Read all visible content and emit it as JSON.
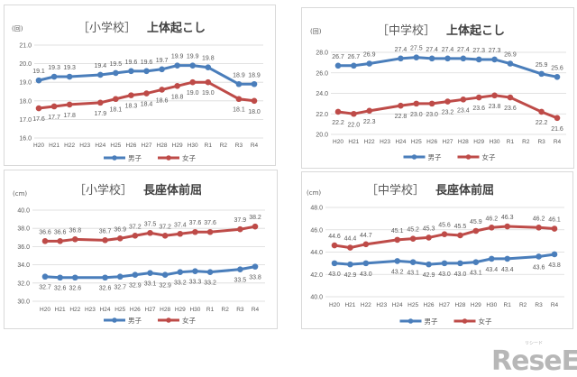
{
  "chart_data": [
    {
      "type": "line",
      "title_school": "［小学校］",
      "title_metric": "上体起こし",
      "unit": "(回)",
      "categories": [
        "H20",
        "H21",
        "H22",
        "H23",
        "H24",
        "H25",
        "H26",
        "H27",
        "H28",
        "H29",
        "H30",
        "R1",
        "R2",
        "R3",
        "R4"
      ],
      "ylim": [
        16.0,
        21.0
      ],
      "yticks": [
        "16.0",
        "17.0",
        "18.0",
        "19.0",
        "20.0",
        "21.0"
      ],
      "grid": true,
      "legend": "bottom",
      "series": [
        {
          "name": "男子",
          "color": "#4a7ebb",
          "values": [
            19.1,
            19.3,
            19.3,
            null,
            19.4,
            19.5,
            19.6,
            19.6,
            19.7,
            19.9,
            19.9,
            19.8,
            null,
            18.9,
            18.9
          ]
        },
        {
          "name": "女子",
          "color": "#be4b48",
          "values": [
            17.6,
            17.7,
            17.8,
            null,
            17.9,
            18.1,
            18.3,
            18.4,
            18.6,
            18.8,
            19.0,
            19.0,
            null,
            18.1,
            18.0
          ]
        }
      ]
    },
    {
      "type": "line",
      "title_school": "［中学校］",
      "title_metric": "上体起こし",
      "unit": "(回)",
      "categories": [
        "H20",
        "H21",
        "H22",
        "H23",
        "H24",
        "H25",
        "H26",
        "H27",
        "H28",
        "H29",
        "H30",
        "R1",
        "R2",
        "R3",
        "R4"
      ],
      "ylim": [
        20.0,
        28.0
      ],
      "yticks": [
        "20.0",
        "22.0",
        "24.0",
        "26.0",
        "28.0"
      ],
      "grid": true,
      "legend": "bottom",
      "series": [
        {
          "name": "男子",
          "color": "#4a7ebb",
          "values": [
            26.7,
            26.7,
            26.9,
            null,
            27.4,
            27.5,
            27.4,
            27.4,
            27.4,
            27.3,
            27.3,
            26.9,
            null,
            25.9,
            25.6
          ]
        },
        {
          "name": "女子",
          "color": "#be4b48",
          "values": [
            22.2,
            22.0,
            22.3,
            null,
            22.8,
            23.0,
            23.0,
            23.2,
            23.4,
            23.6,
            23.8,
            23.6,
            null,
            22.2,
            21.6
          ]
        }
      ]
    },
    {
      "type": "line",
      "title_school": "［小学校］",
      "title_metric": "長座体前屈",
      "unit": "(cm)",
      "categories": [
        "H20",
        "H21",
        "H22",
        "H23",
        "H24",
        "H25",
        "H26",
        "H27",
        "H28",
        "H29",
        "H30",
        "R1",
        "R2",
        "R3",
        "R4"
      ],
      "ylim": [
        30.0,
        40.0
      ],
      "yticks": [
        "30.0",
        "32.0",
        "34.0",
        "36.0",
        "38.0",
        "40.0"
      ],
      "grid": true,
      "legend": "bottom",
      "series": [
        {
          "name": "男子",
          "color": "#4a7ebb",
          "values": [
            32.7,
            32.6,
            32.6,
            null,
            32.6,
            32.7,
            32.9,
            33.1,
            32.9,
            33.2,
            33.3,
            33.2,
            null,
            33.5,
            33.8
          ]
        },
        {
          "name": "女子",
          "color": "#be4b48",
          "values": [
            36.6,
            36.6,
            36.8,
            null,
            36.7,
            36.9,
            37.2,
            37.5,
            37.2,
            37.4,
            37.6,
            37.6,
            null,
            37.9,
            38.2
          ]
        }
      ]
    },
    {
      "type": "line",
      "title_school": "［中学校］",
      "title_metric": "長座体前屈",
      "unit": "(cm)",
      "categories": [
        "H20",
        "H21",
        "H22",
        "H23",
        "H24",
        "H25",
        "H26",
        "H27",
        "H28",
        "H29",
        "H30",
        "R1",
        "R2",
        "R3",
        "R4"
      ],
      "ylim": [
        40.0,
        48.0
      ],
      "yticks": [
        "40.0",
        "42.0",
        "44.0",
        "46.0",
        "48.0"
      ],
      "grid": true,
      "legend": "bottom",
      "series": [
        {
          "name": "男子",
          "color": "#4a7ebb",
          "values": [
            43.0,
            42.9,
            43.0,
            null,
            43.2,
            43.1,
            42.9,
            43.0,
            43.0,
            43.1,
            43.4,
            43.4,
            null,
            43.6,
            43.8
          ]
        },
        {
          "name": "女子",
          "color": "#be4b48",
          "values": [
            44.6,
            44.4,
            44.7,
            null,
            45.1,
            45.2,
            45.3,
            45.6,
            45.5,
            45.9,
            46.2,
            46.3,
            null,
            46.2,
            46.1
          ]
        }
      ]
    }
  ],
  "watermark": {
    "text": "ReseEd",
    "sub": "リシード"
  }
}
